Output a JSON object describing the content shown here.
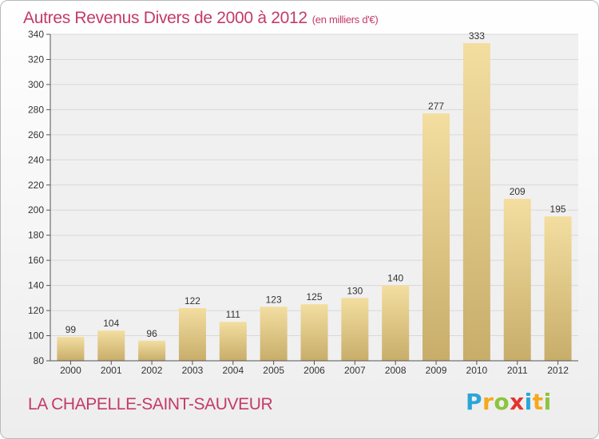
{
  "header": {
    "title": "Autres Revenus Divers de 2000 à 2012",
    "unit": "(en milliers d'€)"
  },
  "footer": {
    "commune": "LA CHAPELLE-SAINT-SAUVEUR"
  },
  "logo": {
    "text": "Proxiti",
    "letters": [
      {
        "ch": "P",
        "color": "#2aa6d8"
      },
      {
        "ch": "r",
        "color": "#f4a81d"
      },
      {
        "ch": "o",
        "color": "#8bc43f"
      },
      {
        "ch": "x",
        "color": "#e2342f"
      },
      {
        "ch": "i",
        "color": "#2aa6d8"
      },
      {
        "ch": "t",
        "color": "#f4a81d"
      },
      {
        "ch": "i",
        "color": "#8bc43f"
      }
    ]
  },
  "colors": {
    "title": "#c33a6b",
    "bar_light": "#f3dea0",
    "bar_dark": "#c8ad6a",
    "plot_bg": "#f0f0f0",
    "grid": "#d8d8d8"
  },
  "chart_data": {
    "type": "bar",
    "title": "Autres Revenus Divers de 2000 à 2012",
    "xlabel": "",
    "ylabel": "",
    "categories": [
      "2000",
      "2001",
      "2002",
      "2003",
      "2004",
      "2005",
      "2006",
      "2007",
      "2008",
      "2009",
      "2010",
      "2011",
      "2012"
    ],
    "values": [
      99,
      104,
      96,
      122,
      111,
      123,
      125,
      130,
      140,
      277,
      333,
      209,
      195
    ],
    "ylim": [
      80,
      340
    ],
    "yticks": [
      80,
      100,
      120,
      140,
      160,
      180,
      200,
      220,
      240,
      260,
      280,
      300,
      320,
      340
    ],
    "grid": true,
    "data_labels": true
  }
}
